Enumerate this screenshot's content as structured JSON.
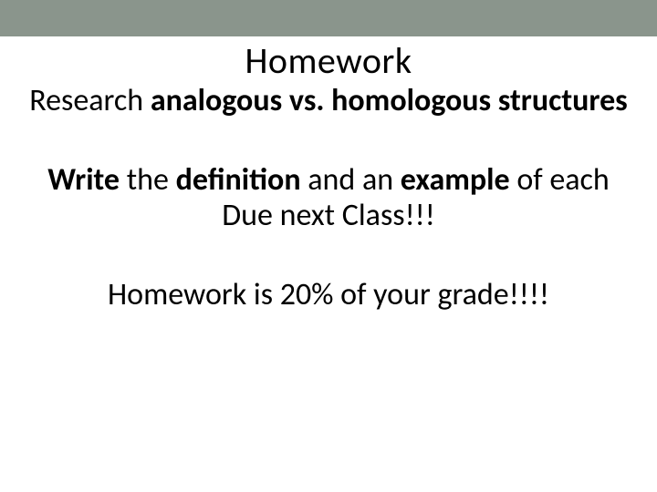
{
  "colors": {
    "top_bar": "#8a958c",
    "background": "#ffffff",
    "text": "#000000"
  },
  "typography": {
    "title_fontsize": 40,
    "body_fontsize": 34,
    "font_family": "Calibri"
  },
  "title": "Homework",
  "line1_prefix": "Research ",
  "line1_bold": "analogous vs. homologous structures",
  "line2_w1": "Write",
  "line2_t1": " the ",
  "line2_w2": "definition",
  "line2_t2": " and an ",
  "line2_w3": "example",
  "line2_t3": " of each",
  "line3": "Due next Class!!!",
  "line4": "Homework is 20% of your grade!!!!"
}
